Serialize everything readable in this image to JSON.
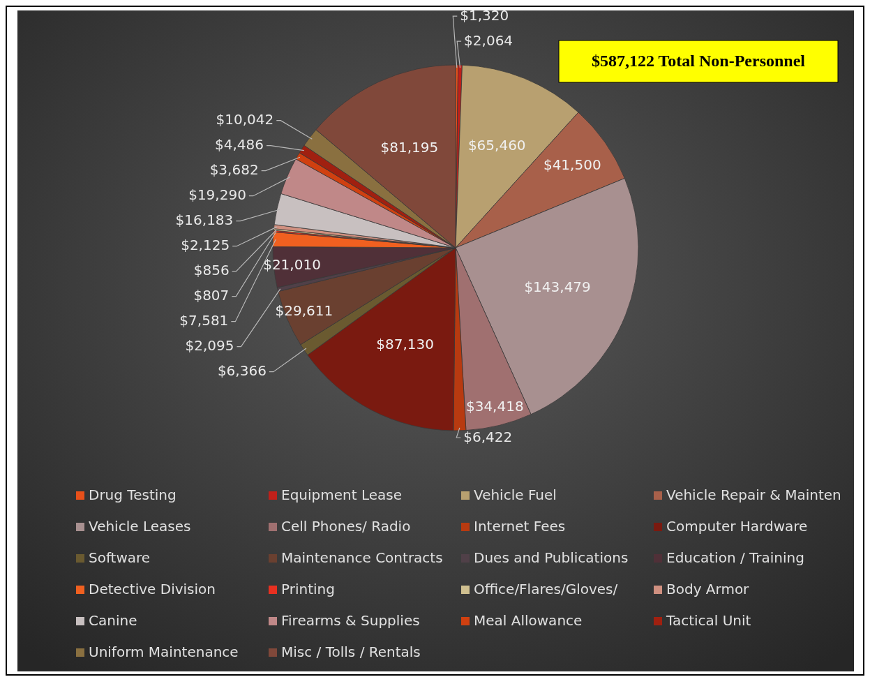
{
  "chart_data": {
    "type": "pie",
    "title": "$587,122 Total Non-Personnel",
    "categories": [
      "Drug Testing",
      "Equipment Lease",
      "Vehicle Fuel",
      "Vehicle Repair & Mainten",
      "Vehicle Leases",
      "Cell Phones/ Radio",
      "Internet Fees",
      "Computer Hardware",
      "Software",
      "Maintenance Contracts",
      "Dues and Publications",
      "Education / Training",
      "Detective Division",
      "Printing",
      "Office/Flares/Gloves/",
      "Body Armor",
      "Canine",
      "Firearms & Supplies",
      "Meal Allowance",
      "Tactical Unit",
      "Uniform Maintenance",
      "Misc / Tolls / Rentals"
    ],
    "values": [
      1320,
      2064,
      65460,
      41500,
      143479,
      34418,
      6422,
      87130,
      6366,
      29611,
      2095,
      21010,
      7581,
      807,
      856,
      2125,
      16183,
      19290,
      3682,
      4486,
      10042,
      81195
    ],
    "value_labels": [
      "$1,320",
      "$2,064",
      "$65,460",
      "$41,500",
      "$143,479",
      "$34,418",
      "$6,422",
      "$87,130",
      "$6,366",
      "$29,611",
      "$2,095",
      "$21,010",
      "$7,581",
      "$807",
      "$856",
      "$2,125",
      "$16,183",
      "$19,290",
      "$3,682",
      "$4,486",
      "$10,042",
      "$81,195"
    ],
    "colors": [
      "#e8501a",
      "#c0201a",
      "#b8a070",
      "#a8604a",
      "#a89090",
      "#a07070",
      "#b83a10",
      "#7a1a10",
      "#6a5a30",
      "#6a4030",
      "#504048",
      "#503038",
      "#f06020",
      "#e83020",
      "#d0c090",
      "#d09080",
      "#c8c0c0",
      "#c08888",
      "#d04010",
      "#a02010",
      "#8a7040",
      "#80483a"
    ],
    "legend": "bottom"
  }
}
